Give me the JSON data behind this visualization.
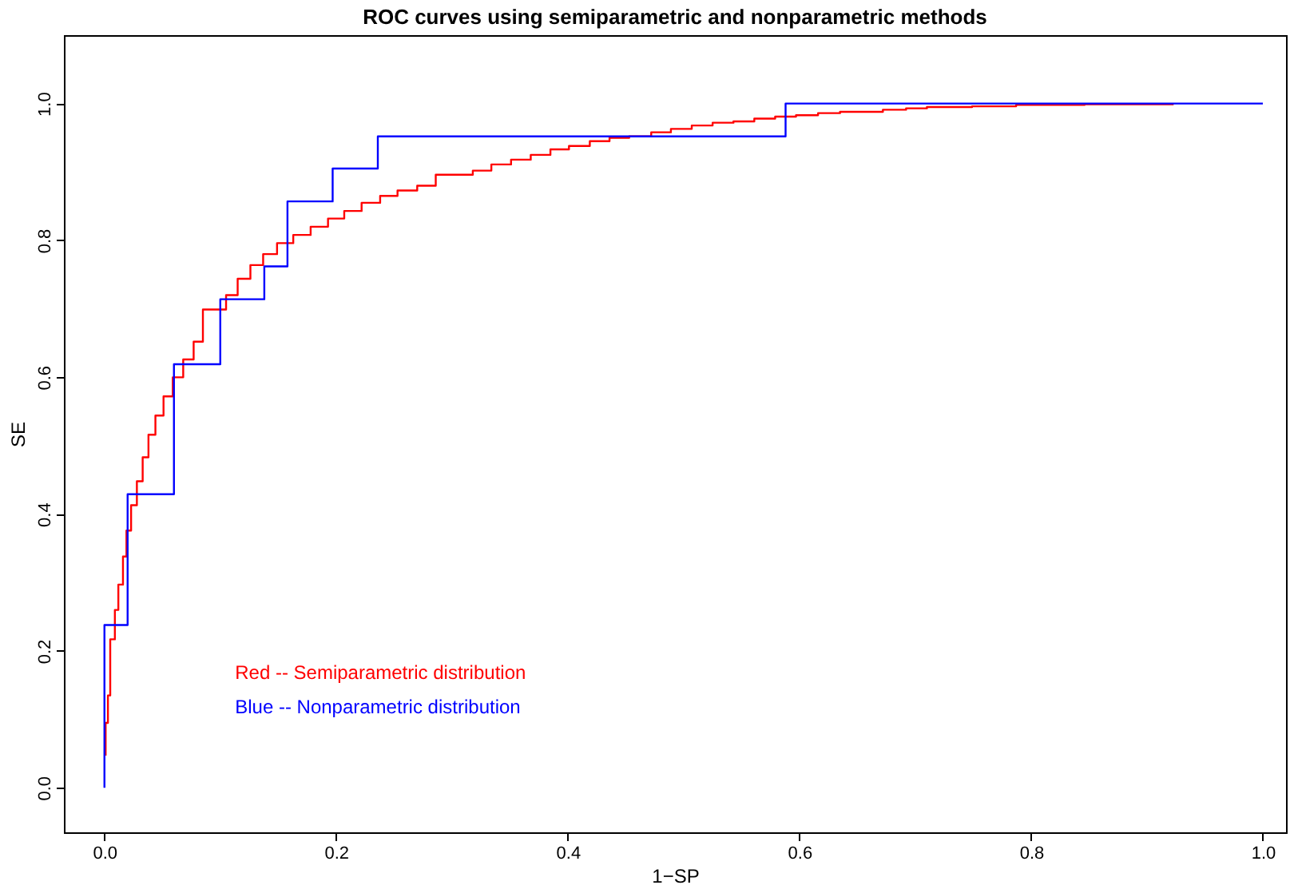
{
  "chart_data": {
    "type": "step",
    "title": "ROC curves using semiparametric and nonparametric methods",
    "xlabel": "1−SP",
    "ylabel": "SE",
    "xlim": [
      -0.035,
      1.02
    ],
    "ylim": [
      -0.065,
      1.1
    ],
    "xticks": [
      {
        "value": 0,
        "label": "0.0"
      },
      {
        "value": 0.2,
        "label": "0.2"
      },
      {
        "value": 0.4,
        "label": "0.4"
      },
      {
        "value": 0.6,
        "label": "0.6"
      },
      {
        "value": 0.8,
        "label": "0.8"
      },
      {
        "value": 1,
        "label": "1.0"
      }
    ],
    "yticks": [
      {
        "value": 0,
        "label": "0.0"
      },
      {
        "value": 0.2,
        "label": "0.2"
      },
      {
        "value": 0.4,
        "label": "0.4"
      },
      {
        "value": 0.6,
        "label": "0.6"
      },
      {
        "value": 0.8,
        "label": "0.8"
      },
      {
        "value": 1,
        "label": "1.0"
      }
    ],
    "grid": false,
    "legend": "bottom left",
    "line_style": "solid",
    "marker": "none",
    "series": [
      {
        "name": "Red -- Semiparametric distribution",
        "color": "#ff0000",
        "x": [
          0.001,
          0.001,
          0.003,
          0.005,
          0.009,
          0.012,
          0.016,
          0.019,
          0.023,
          0.028,
          0.033,
          0.038,
          0.044,
          0.051,
          0.059,
          0.068,
          0.077,
          0.085,
          0.105,
          0.115,
          0.126,
          0.137,
          0.149,
          0.163,
          0.178,
          0.193,
          0.207,
          0.222,
          0.238,
          0.253,
          0.27,
          0.286,
          0.318,
          0.334,
          0.351,
          0.368,
          0.385,
          0.401,
          0.419,
          0.436,
          0.453,
          0.472,
          0.489,
          0.507,
          0.525,
          0.543,
          0.561,
          0.579,
          0.597,
          0.616,
          0.635,
          0.672,
          0.692,
          0.71,
          0.749,
          0.787,
          0.846,
          0.923
        ],
        "values": [
          0.047,
          0.095,
          0.135,
          0.217,
          0.26,
          0.297,
          0.338,
          0.376,
          0.413,
          0.448,
          0.483,
          0.516,
          0.544,
          0.572,
          0.6,
          0.626,
          0.652,
          0.699,
          0.72,
          0.744,
          0.764,
          0.78,
          0.796,
          0.808,
          0.82,
          0.832,
          0.843,
          0.855,
          0.865,
          0.873,
          0.88,
          0.896,
          0.902,
          0.911,
          0.918,
          0.925,
          0.933,
          0.938,
          0.945,
          0.95,
          0.952,
          0.958,
          0.963,
          0.968,
          0.972,
          0.974,
          0.978,
          0.981,
          0.983,
          0.986,
          0.988,
          0.991,
          0.993,
          0.995,
          0.996,
          0.998,
          0.999,
          0.999
        ]
      },
      {
        "name": "Blue -- Nonparametric distribution",
        "color": "#0000ff",
        "x": [
          0,
          0,
          0.02,
          0.06,
          0.1,
          0.138,
          0.158,
          0.197,
          0.236,
          0.588,
          1.0
        ],
        "values": [
          0,
          0.238,
          0.429,
          0.619,
          0.714,
          0.762,
          0.857,
          0.905,
          0.952,
          1.0,
          1.0
        ]
      }
    ]
  }
}
